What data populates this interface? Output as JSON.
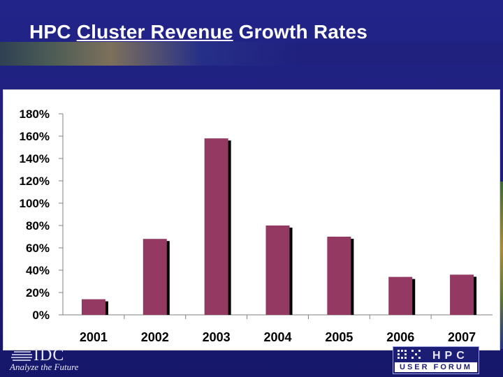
{
  "slide": {
    "title_parts": [
      "HPC ",
      "Cluster Revenue",
      " Growth Rates"
    ]
  },
  "chart_data": {
    "type": "bar",
    "title": "HPC Cluster Revenue Growth Rates",
    "categories": [
      "2001",
      "2002",
      "2003",
      "2004",
      "2005",
      "2006",
      "2007"
    ],
    "values": [
      14,
      68,
      158,
      80,
      70,
      34,
      36
    ],
    "value_unit": "%",
    "ylim": [
      0,
      180
    ],
    "y_ticks": [
      "0%",
      "20%",
      "40%",
      "60%",
      "80%",
      "100%",
      "120%",
      "140%",
      "160%",
      "180%"
    ],
    "xlabel": "",
    "ylabel": "",
    "legend": "none",
    "grid": false,
    "bar_color": "#943a62",
    "shadow_color": "#000000"
  },
  "footer": {
    "idc_name": "IDC",
    "idc_tagline": "Analyze the Future",
    "hpc_logo_top": "HPC",
    "hpc_logo_bottom": "USER FORUM"
  },
  "colors": {
    "background": "#1f1f7a",
    "title": "#ffffff",
    "panel": "#ffffff"
  },
  "icons": [
    "idc-globe-logo-icon",
    "hpc-dot-matrix-logo-icon"
  ]
}
